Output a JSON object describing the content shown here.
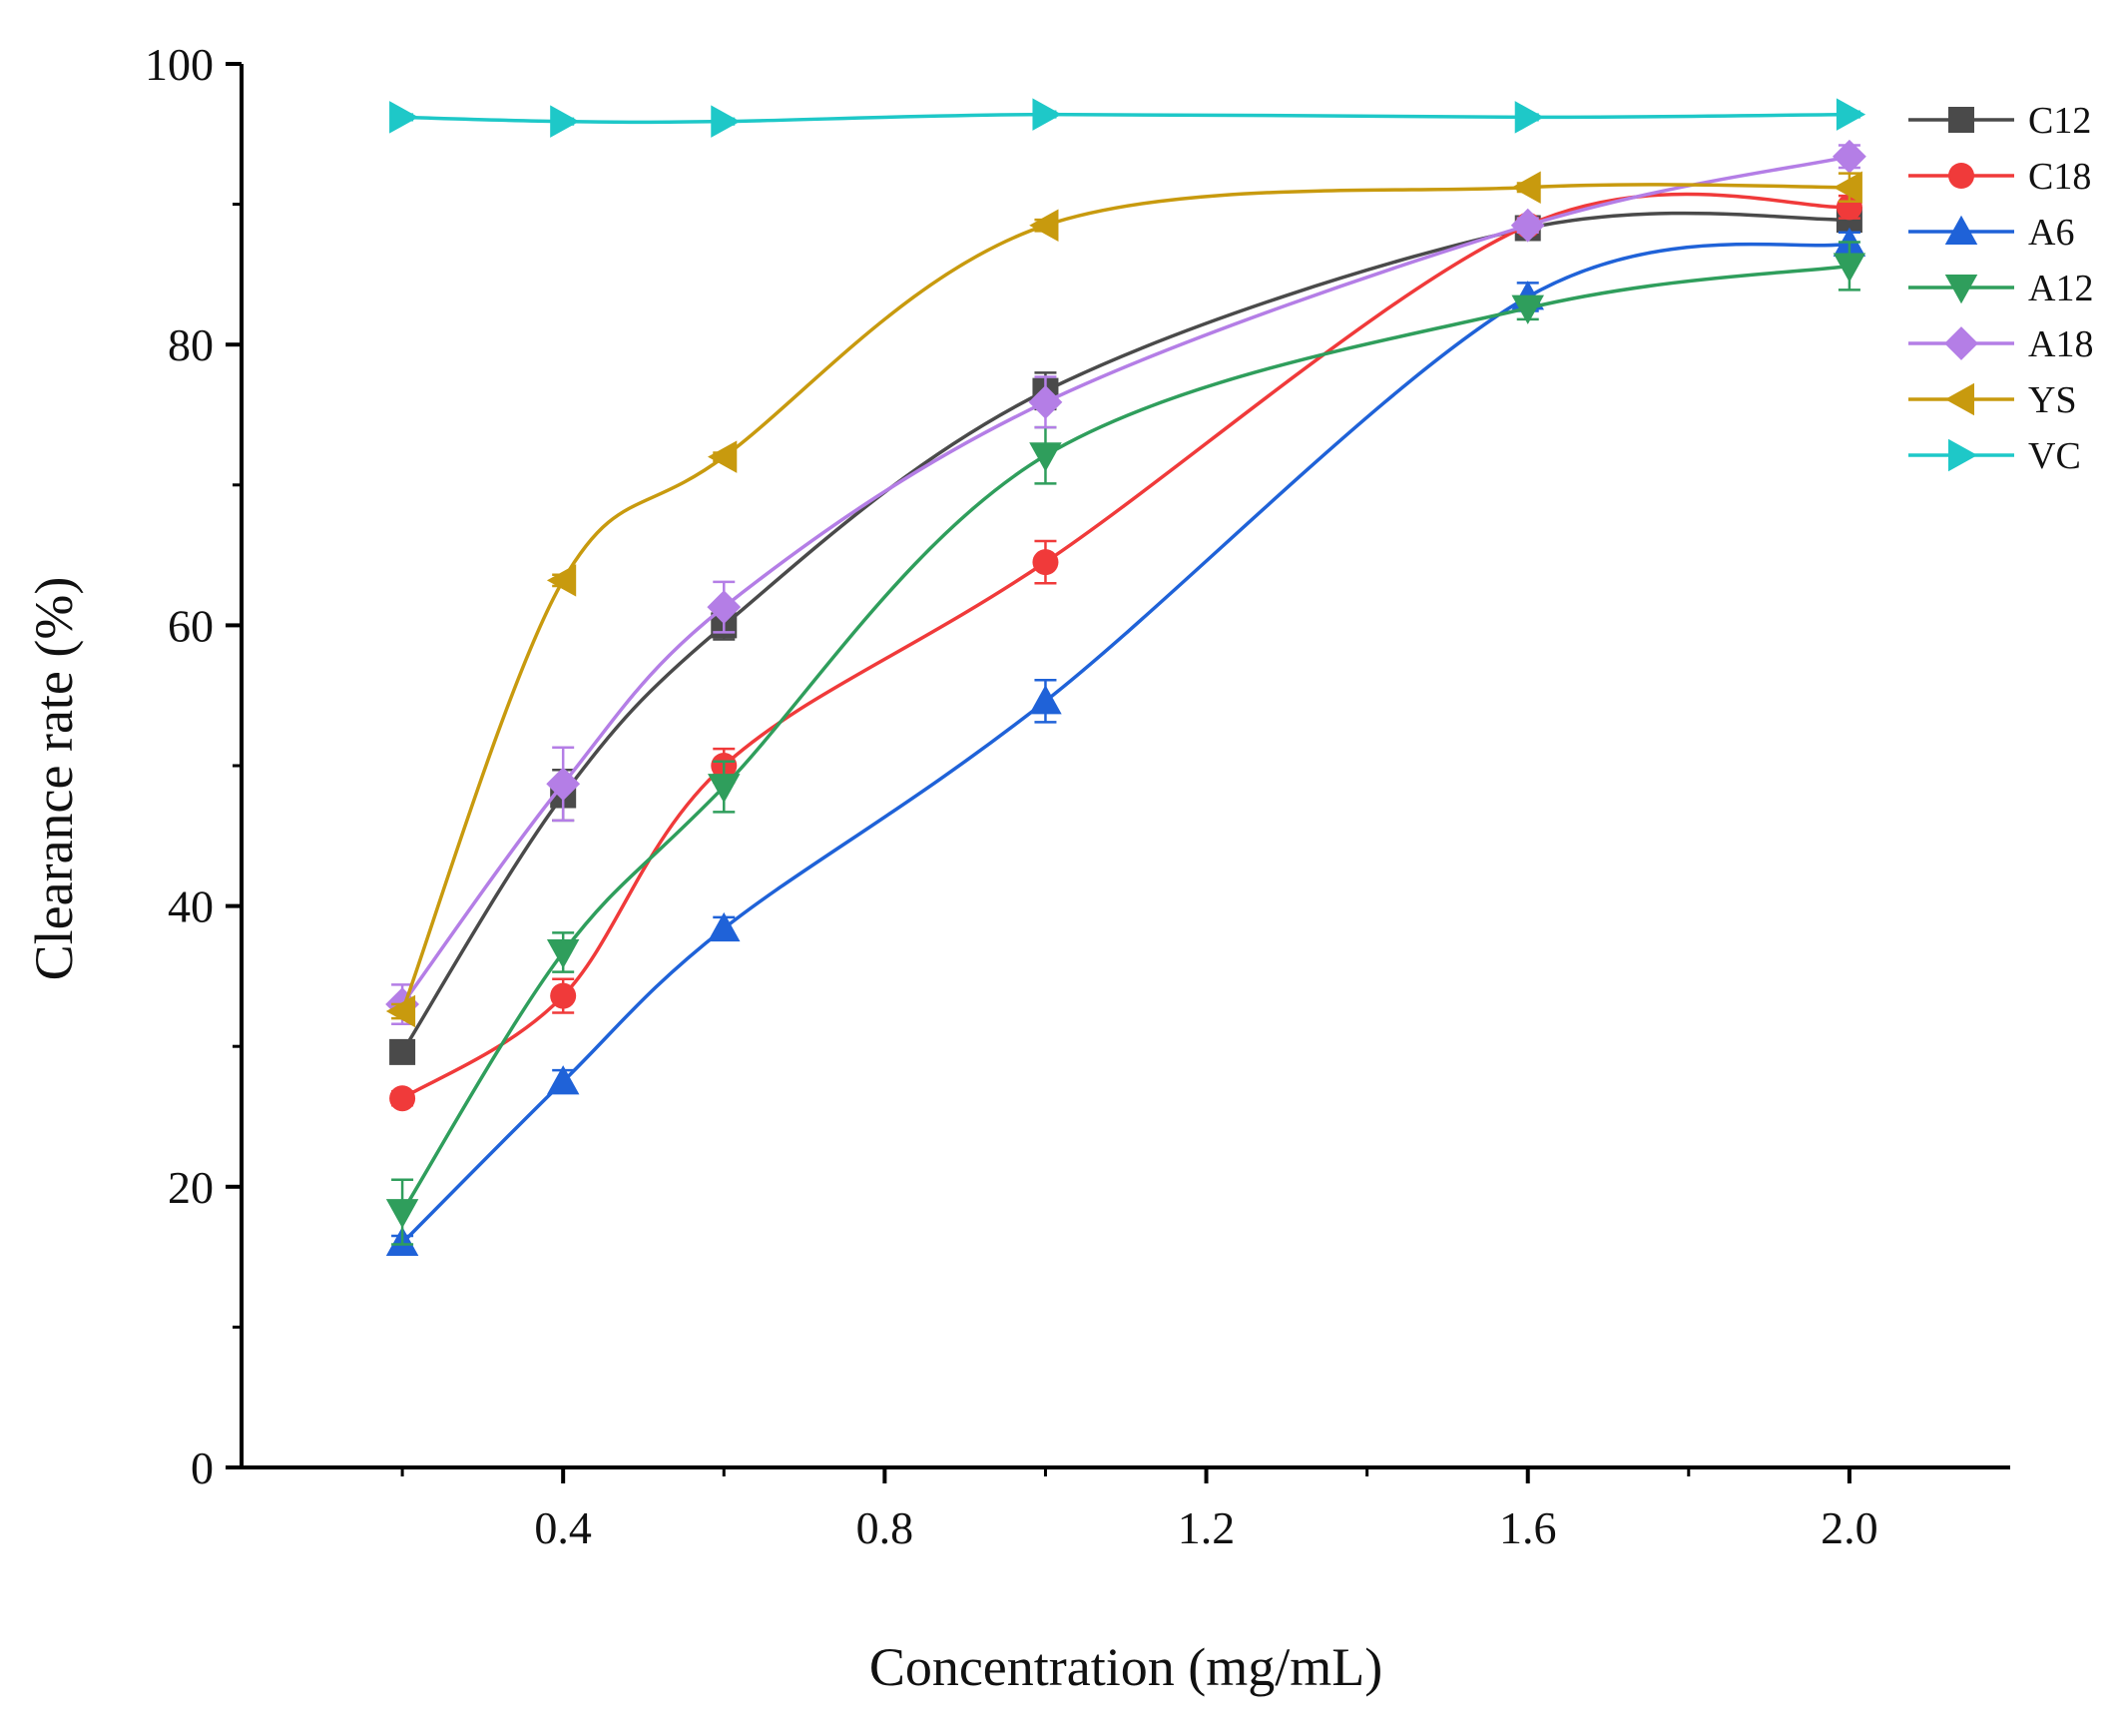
{
  "chart_data": {
    "type": "line",
    "title": "",
    "xlabel": "Concentration (mg/mL)",
    "ylabel": "Clearance rate (%)",
    "xlim": [
      0.0,
      2.2
    ],
    "ylim": [
      0,
      100
    ],
    "x_major_ticks": [
      0.4,
      0.8,
      1.2,
      1.6,
      2.0
    ],
    "x_tick_labels": [
      "0.4",
      "0.8",
      "1.2",
      "1.6",
      "2.0"
    ],
    "x_minor_ticks": [
      0.2,
      0.6,
      1.0,
      1.4,
      1.8
    ],
    "y_major_ticks": [
      0,
      20,
      40,
      60,
      80,
      100
    ],
    "y_tick_labels": [
      "0",
      "20",
      "40",
      "60",
      "80",
      "100"
    ],
    "y_minor_ticks": [
      10,
      30,
      50,
      70,
      90
    ],
    "grid": false,
    "legend_position": "right",
    "x": [
      0.2,
      0.4,
      0.6,
      1.0,
      1.6,
      2.0
    ],
    "series": [
      {
        "name": "C12",
        "color": "#4a4a4a",
        "marker": "square",
        "values": [
          29.6,
          47.9,
          60.0,
          76.7,
          88.3,
          88.9
        ],
        "errors": [
          0.8,
          1.8,
          1.0,
          1.3,
          0.5,
          0.8
        ]
      },
      {
        "name": "C18",
        "color": "#f03a3a",
        "marker": "circle",
        "values": [
          26.3,
          33.6,
          50.0,
          64.5,
          88.5,
          89.8
        ],
        "errors": [
          0.5,
          1.2,
          1.2,
          1.5,
          0.5,
          0.8
        ]
      },
      {
        "name": "A6",
        "color": "#1f62d8",
        "marker": "triangle-up",
        "values": [
          16.0,
          27.5,
          38.4,
          54.6,
          83.4,
          87.2
        ],
        "errors": [
          0.5,
          0.8,
          0.8,
          1.5,
          1.0,
          0.8
        ]
      },
      {
        "name": "A12",
        "color": "#2f9e5c",
        "marker": "triangle-down",
        "values": [
          18.2,
          36.7,
          48.5,
          72.1,
          82.6,
          85.6
        ],
        "errors": [
          2.3,
          1.4,
          1.8,
          2.0,
          0.8,
          1.7
        ]
      },
      {
        "name": "A18",
        "color": "#b47ee6",
        "marker": "diamond",
        "values": [
          33.0,
          48.7,
          61.3,
          75.9,
          88.5,
          93.4
        ],
        "errors": [
          1.4,
          2.6,
          1.8,
          1.8,
          0.5,
          0.8
        ]
      },
      {
        "name": "YS",
        "color": "#c89a0e",
        "marker": "triangle-left",
        "values": [
          32.5,
          63.2,
          72.0,
          88.5,
          91.2,
          91.2
        ],
        "errors": [
          0.5,
          0.4,
          0.3,
          0.4,
          0.3,
          1.0
        ]
      },
      {
        "name": "VC",
        "color": "#1ec8c8",
        "marker": "triangle-right",
        "values": [
          96.2,
          95.9,
          95.9,
          96.4,
          96.2,
          96.4
        ],
        "errors": [
          0.2,
          0.2,
          0.2,
          0.2,
          0.2,
          0.2
        ]
      }
    ]
  }
}
